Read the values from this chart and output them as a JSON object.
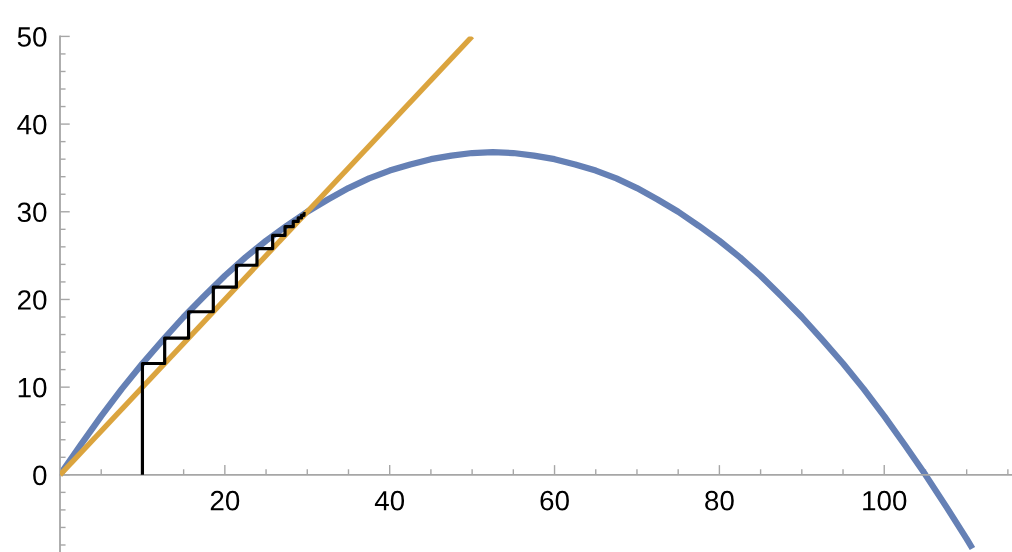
{
  "chart_data": {
    "type": "line",
    "xlim": [
      0,
      115.5
    ],
    "ylim": [
      -8.8,
      50
    ],
    "xticks": [
      {
        "value": 5,
        "label": null
      },
      {
        "value": 10,
        "label": null
      },
      {
        "value": 15,
        "label": null
      },
      20,
      {
        "value": 25,
        "label": null
      },
      {
        "value": 30,
        "label": null
      },
      {
        "value": 35,
        "label": null
      },
      40,
      {
        "value": 45,
        "label": null
      },
      {
        "value": 50,
        "label": null
      },
      {
        "value": 55,
        "label": null
      },
      60,
      {
        "value": 65,
        "label": null
      },
      {
        "value": 70,
        "label": null
      },
      {
        "value": 75,
        "label": null
      },
      80,
      {
        "value": 85,
        "label": null
      },
      {
        "value": 90,
        "label": null
      },
      {
        "value": 95,
        "label": null
      },
      100,
      {
        "value": 105,
        "label": null
      },
      {
        "value": 110,
        "label": null
      },
      {
        "value": 115,
        "label": null
      }
    ],
    "yticks": [
      {
        "value": -8,
        "label": null
      },
      {
        "value": -6,
        "label": null
      },
      {
        "value": -4,
        "label": null
      },
      {
        "value": -2,
        "label": null
      },
      0,
      {
        "value": 2,
        "label": null
      },
      {
        "value": 4,
        "label": null
      },
      {
        "value": 6,
        "label": null
      },
      {
        "value": 8,
        "label": null
      },
      10,
      {
        "value": 12,
        "label": null
      },
      {
        "value": 14,
        "label": null
      },
      {
        "value": 16,
        "label": null
      },
      {
        "value": 18,
        "label": null
      },
      20,
      {
        "value": 22,
        "label": null
      },
      {
        "value": 24,
        "label": null
      },
      {
        "value": 26,
        "label": null
      },
      {
        "value": 28,
        "label": null
      },
      30,
      {
        "value": 32,
        "label": null
      },
      {
        "value": 34,
        "label": null
      },
      {
        "value": 36,
        "label": null
      },
      {
        "value": 38,
        "label": null
      },
      40,
      {
        "value": 42,
        "label": null
      },
      {
        "value": 44,
        "label": null
      },
      {
        "value": 46,
        "label": null
      },
      {
        "value": 48,
        "label": null
      },
      50
    ],
    "line_style": "solid",
    "series": [
      {
        "color": "#6580b5",
        "x": [
          0,
          2.5,
          5,
          7.5,
          10,
          12.5,
          15,
          17.5,
          20,
          22.5,
          25,
          27.5,
          30,
          32.5,
          35,
          37.5,
          40,
          42.5,
          45,
          47.5,
          50,
          52.5,
          55,
          57.5,
          60,
          62.5,
          65,
          67.5,
          70,
          72.5,
          75,
          77.5,
          80,
          82.5,
          85,
          87.5,
          90,
          92.5,
          95,
          97.5,
          100,
          102.5,
          105,
          107.5,
          110,
          110.7
        ],
        "values": [
          0,
          3.4,
          6.7,
          9.8,
          12.7,
          15.4,
          18.0,
          20.4,
          22.7,
          24.8,
          26.7,
          28.4,
          30.0,
          31.4,
          32.7,
          33.8,
          34.7,
          35.4,
          36.0,
          36.4,
          36.7,
          36.8,
          36.7,
          36.4,
          36.0,
          35.4,
          34.7,
          33.8,
          32.7,
          31.4,
          30.0,
          28.4,
          26.7,
          24.8,
          22.7,
          20.4,
          18.0,
          15.4,
          12.7,
          9.8,
          6.7,
          3.4,
          0,
          -3.6,
          -7.3,
          -8.4
        ]
      },
      {
        "color": "#dba43e",
        "x": [
          0,
          50
        ],
        "values": [
          0,
          50
        ]
      },
      {
        "color": "#000000",
        "x": [
          10,
          10,
          12.7,
          12.7,
          15.6,
          15.6,
          18.6,
          18.6,
          21.4,
          21.4,
          23.9,
          23.9,
          25.8,
          25.8,
          27.3,
          27.3,
          28.3,
          28.3,
          28.9,
          28.9,
          29.3,
          29.3,
          29.6,
          29.6,
          29.8
        ],
        "values": [
          0,
          12.7,
          12.7,
          15.6,
          15.6,
          18.6,
          18.6,
          21.4,
          21.4,
          23.9,
          23.9,
          25.8,
          25.8,
          27.3,
          27.3,
          28.3,
          28.3,
          28.9,
          28.9,
          29.3,
          29.3,
          29.6,
          29.6,
          29.8,
          29.8
        ]
      }
    ]
  }
}
